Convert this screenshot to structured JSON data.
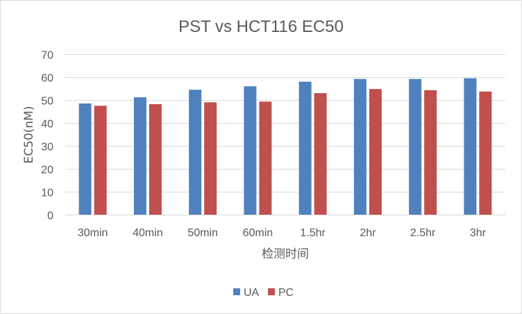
{
  "chart_data": {
    "type": "bar",
    "title": "PST vs HCT116 EC50",
    "xlabel": "检测时间",
    "ylabel": "EC50(nM)",
    "categories": [
      "30min",
      "40min",
      "50min",
      "60min",
      "1.5hr",
      "2hr",
      "2.5hr",
      "3hr"
    ],
    "series": [
      {
        "name": "UA",
        "color": "#4f81bd",
        "values": [
          48.5,
          51.2,
          54.5,
          56.0,
          58.0,
          59.2,
          59.2,
          59.5
        ]
      },
      {
        "name": "PC",
        "color": "#c0504d",
        "values": [
          47.5,
          48.2,
          49.0,
          49.3,
          53.0,
          54.8,
          54.3,
          53.7
        ]
      }
    ],
    "ylim": [
      0,
      70
    ],
    "yticks": [
      "0",
      "10",
      "20",
      "30",
      "40",
      "50",
      "60",
      "70"
    ],
    "grid": true,
    "legend_position": "bottom"
  }
}
